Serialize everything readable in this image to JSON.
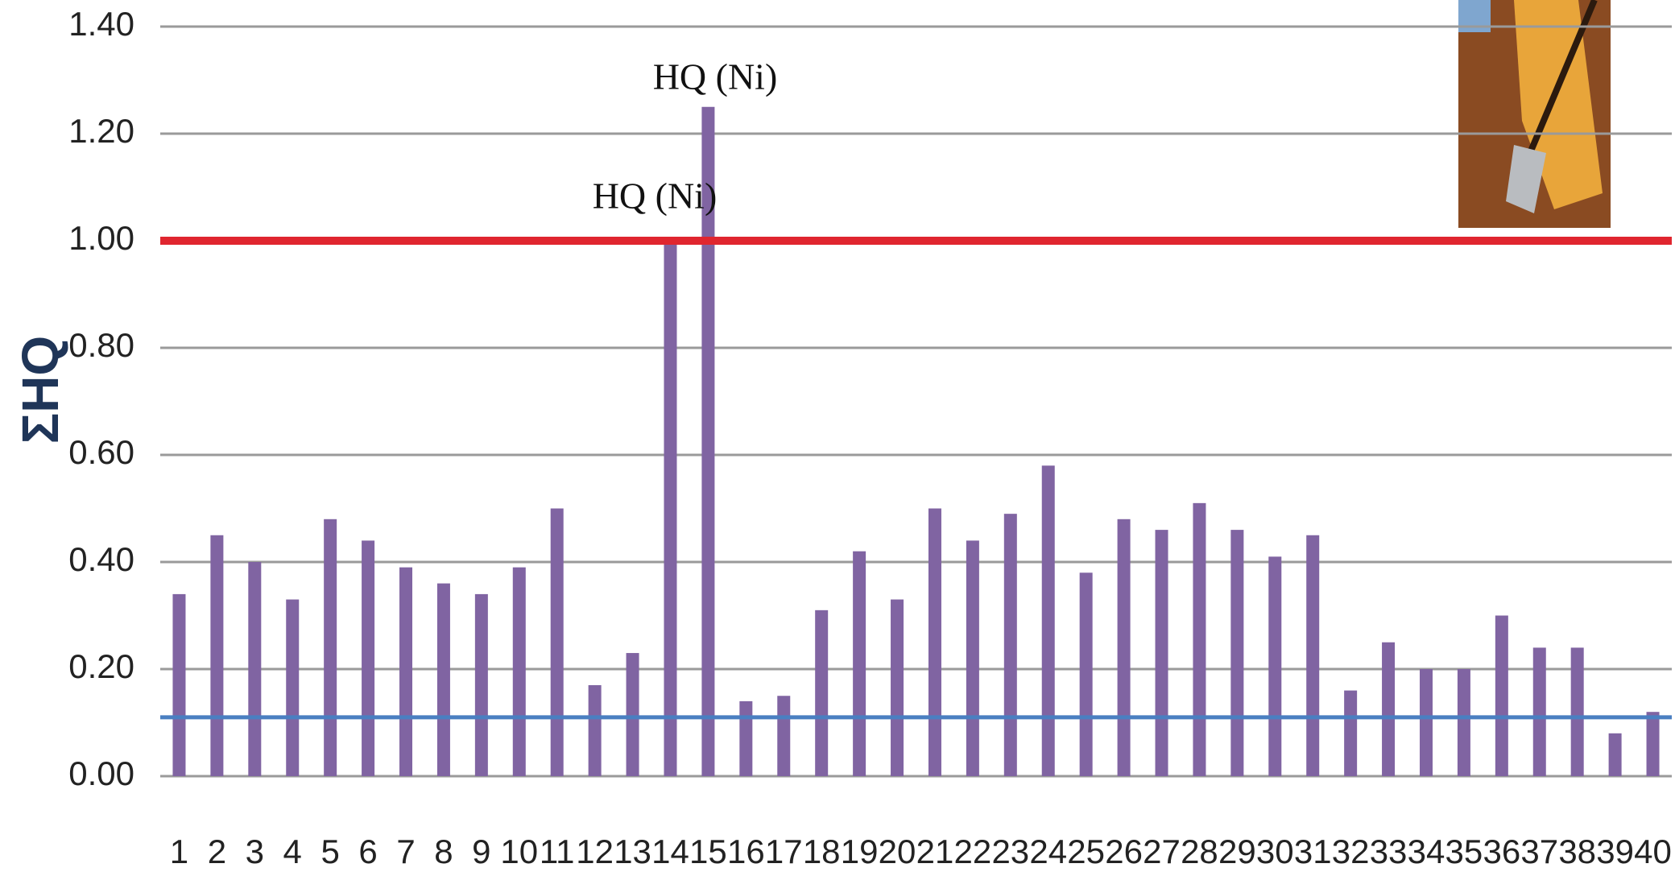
{
  "chart_data": {
    "type": "bar",
    "y_label": "ΣHQ",
    "categories": [
      "1",
      "2",
      "3",
      "4",
      "5",
      "6",
      "7",
      "8",
      "9",
      "10",
      "11",
      "12",
      "13",
      "14",
      "15",
      "16",
      "17",
      "18",
      "19",
      "20",
      "21",
      "22",
      "23",
      "24",
      "25",
      "26",
      "27",
      "28",
      "29",
      "30",
      "31",
      "32",
      "33",
      "34",
      "35",
      "36",
      "37",
      "38",
      "39",
      "40"
    ],
    "values": [
      0.34,
      0.45,
      0.4,
      0.33,
      0.48,
      0.44,
      0.39,
      0.36,
      0.34,
      0.39,
      0.5,
      0.17,
      0.23,
      1.0,
      1.25,
      0.14,
      0.15,
      0.31,
      0.42,
      0.33,
      0.5,
      0.44,
      0.49,
      0.58,
      0.38,
      0.48,
      0.46,
      0.51,
      0.46,
      0.41,
      0.45,
      0.16,
      0.25,
      0.2,
      0.2,
      0.3,
      0.24,
      0.24,
      0.08,
      0.12
    ],
    "color": "#8064a2",
    "ylim": [
      0,
      1.4
    ],
    "yticks": [
      {
        "value": 0,
        "label": "0.00"
      },
      {
        "value": 0.2,
        "label": "0.20"
      },
      {
        "value": 0.4,
        "label": "0.40"
      },
      {
        "value": 0.6,
        "label": "0.60"
      },
      {
        "value": 0.8,
        "label": "0.80"
      },
      {
        "value": 1,
        "label": "1.00"
      },
      {
        "value": 1.2,
        "label": "1.20"
      },
      {
        "value": 1.4,
        "label": "1.40"
      }
    ],
    "grid": true,
    "reference_lines": [
      {
        "value": 1,
        "color": "#e0262f"
      },
      {
        "value": 0.11,
        "color": "#4a7fc1"
      }
    ],
    "annotations": [
      "HQ (Ni)",
      "HQ (Ni)"
    ]
  }
}
